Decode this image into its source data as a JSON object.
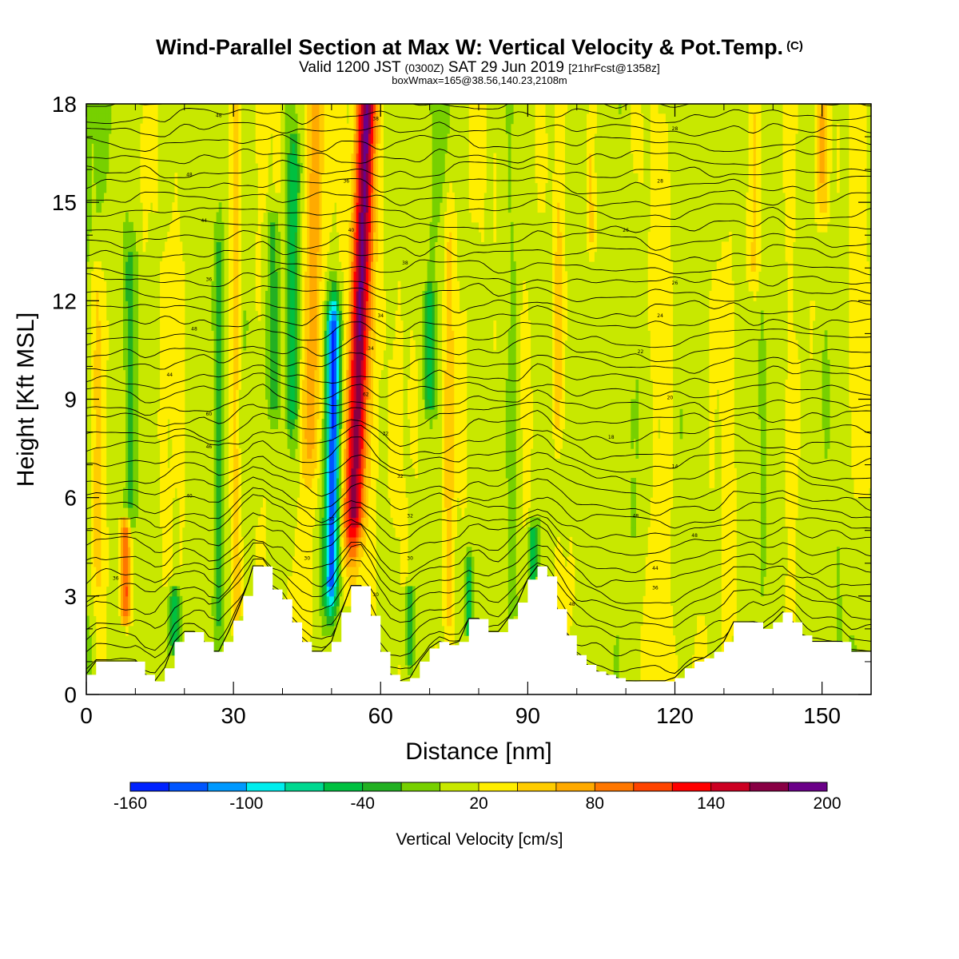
{
  "header": {
    "title": "Wind-Parallel Section at Max W: Vertical Velocity & Pot.Temp.",
    "copyright": "(C)",
    "valid_prefix": "Valid 1200 JST",
    "valid_utc": "(0300Z)",
    "valid_date": "SAT 29 Jun 2019",
    "forecast": "[21hrFcst@1358z]",
    "boxinfo": "boxWmax=165@38.56,140.23,2108m"
  },
  "chart_data": {
    "type": "heatmap",
    "xlabel": "Distance [nm]",
    "ylabel": "Height [Kft MSL]",
    "xlim": [
      0,
      160
    ],
    "ylim": [
      0,
      18
    ],
    "x_ticks": [
      0,
      30,
      60,
      90,
      120,
      150
    ],
    "y_ticks": [
      0,
      3,
      6,
      9,
      12,
      15,
      18
    ],
    "grid": false,
    "colorbar": {
      "title": "Vertical Velocity [cm/s]",
      "labels": [
        "-160",
        "-100",
        "-40",
        "20",
        "80",
        "140",
        "200"
      ],
      "colors": [
        "#0022ff",
        "#0055ff",
        "#0099ff",
        "#00eeee",
        "#00d890",
        "#00c040",
        "#22b022",
        "#77d000",
        "#c8e800",
        "#ffee00",
        "#ffcc00",
        "#ffaa00",
        "#ff7700",
        "#ff4400",
        "#ff0000",
        "#cc0022",
        "#880044",
        "#6a0088"
      ]
    },
    "terrain_kft": [
      [
        0,
        0.6
      ],
      [
        2,
        1.0
      ],
      [
        6,
        1.0
      ],
      [
        10,
        1.0
      ],
      [
        12,
        0.6
      ],
      [
        14,
        0.4
      ],
      [
        16,
        0.8
      ],
      [
        18,
        1.6
      ],
      [
        20,
        1.9
      ],
      [
        22,
        1.9
      ],
      [
        24,
        1.6
      ],
      [
        25,
        1.3
      ],
      [
        27,
        1.3
      ],
      [
        29,
        1.9
      ],
      [
        31,
        2.6
      ],
      [
        33,
        3.4
      ],
      [
        34,
        3.9
      ],
      [
        36,
        3.9
      ],
      [
        38,
        3.2
      ],
      [
        40,
        2.9
      ],
      [
        42,
        2.2
      ],
      [
        44,
        1.6
      ],
      [
        46,
        1.3
      ],
      [
        48,
        1.3
      ],
      [
        50,
        1.6
      ],
      [
        52,
        2.5
      ],
      [
        54,
        3.3
      ],
      [
        56,
        3.3
      ],
      [
        58,
        2.4
      ],
      [
        60,
        1.3
      ],
      [
        62,
        0.6
      ],
      [
        64,
        0.4
      ],
      [
        66,
        0.5
      ],
      [
        68,
        1.0
      ],
      [
        70,
        1.4
      ],
      [
        72,
        1.6
      ],
      [
        74,
        1.5
      ],
      [
        76,
        1.6
      ],
      [
        78,
        2.3
      ],
      [
        80,
        2.3
      ],
      [
        82,
        1.9
      ],
      [
        84,
        1.9
      ],
      [
        86,
        2.3
      ],
      [
        88,
        2.8
      ],
      [
        90,
        3.5
      ],
      [
        92,
        3.9
      ],
      [
        94,
        3.6
      ],
      [
        96,
        2.6
      ],
      [
        98,
        1.8
      ],
      [
        100,
        1.2
      ],
      [
        102,
        0.9
      ],
      [
        104,
        0.7
      ],
      [
        106,
        0.6
      ],
      [
        108,
        0.5
      ],
      [
        110,
        0.4
      ],
      [
        112,
        0.4
      ],
      [
        114,
        0.4
      ],
      [
        116,
        0.4
      ],
      [
        118,
        0.4
      ],
      [
        120,
        0.5
      ],
      [
        122,
        0.8
      ],
      [
        124,
        1.0
      ],
      [
        126,
        1.1
      ],
      [
        128,
        1.3
      ],
      [
        130,
        1.6
      ],
      [
        132,
        2.2
      ],
      [
        134,
        2.2
      ],
      [
        136,
        2.2
      ],
      [
        138,
        2.0
      ],
      [
        140,
        2.2
      ],
      [
        142,
        2.5
      ],
      [
        144,
        2.2
      ],
      [
        146,
        1.8
      ],
      [
        148,
        1.6
      ],
      [
        150,
        1.6
      ],
      [
        152,
        1.6
      ],
      [
        154,
        1.6
      ],
      [
        156,
        1.3
      ],
      [
        158,
        1.3
      ],
      [
        160,
        1.3
      ]
    ],
    "updrafts": [
      {
        "x": 54.5,
        "y0": 6,
        "y1": 18,
        "wx": 2.0,
        "v": 165,
        "tilt": 0.22
      },
      {
        "x": 8,
        "y0": 2.5,
        "y1": 5,
        "wx": 1.0,
        "v": 100,
        "tilt": 0.0
      },
      {
        "x": 46,
        "y0": 8,
        "y1": 18,
        "wx": 1.8,
        "v": 50,
        "tilt": 0.1
      },
      {
        "x": 30.5,
        "y0": 2,
        "y1": 18,
        "wx": 1.0,
        "v": 40,
        "tilt": 0.0
      },
      {
        "x": 96,
        "y0": 9,
        "y1": 18,
        "wx": 1.2,
        "v": 45,
        "tilt": 0.05
      },
      {
        "x": 74,
        "y0": 3,
        "y1": 14,
        "wx": 1.2,
        "v": 35,
        "tilt": 0.0
      },
      {
        "x": 2,
        "y0": 4,
        "y1": 12,
        "wx": 1.5,
        "v": 30,
        "tilt": 0.0
      },
      {
        "x": 136,
        "y0": 13,
        "y1": 18,
        "wx": 1.5,
        "v": 35,
        "tilt": 0.0
      },
      {
        "x": 103,
        "y0": 14,
        "y1": 18,
        "wx": 1.0,
        "v": 40,
        "tilt": 0.0
      },
      {
        "x": 150,
        "y0": 15,
        "y1": 18,
        "wx": 1.0,
        "v": 35,
        "tilt": 0.0
      }
    ],
    "downdrafts": [
      {
        "x": 50,
        "y0": 3.5,
        "y1": 11,
        "wx": 1.4,
        "v": -150,
        "tilt": 0.05
      },
      {
        "x": 42,
        "y0": 9,
        "y1": 16,
        "wx": 1.2,
        "v": -60,
        "tilt": 0.05
      },
      {
        "x": 38,
        "y0": 9,
        "y1": 14,
        "wx": 1.2,
        "v": -50,
        "tilt": 0.0
      },
      {
        "x": 70,
        "y0": 9,
        "y1": 12,
        "wx": 1.2,
        "v": -50,
        "tilt": 0.0
      },
      {
        "x": 9,
        "y0": 6,
        "y1": 13,
        "wx": 1.2,
        "v": -40,
        "tilt": 0.0
      },
      {
        "x": 18,
        "y0": 1.5,
        "y1": 3,
        "wx": 1.2,
        "v": -60,
        "tilt": 0.0
      },
      {
        "x": 27,
        "y0": 3,
        "y1": 13,
        "wx": 1.0,
        "v": -40,
        "tilt": 0.0
      },
      {
        "x": 66,
        "y0": 1,
        "y1": 3,
        "wx": 1.0,
        "v": -50,
        "tilt": 0.0
      },
      {
        "x": 78,
        "y0": 2,
        "y1": 4,
        "wx": 0.8,
        "v": -60,
        "tilt": 0.0
      },
      {
        "x": 91,
        "y0": 3.5,
        "y1": 5,
        "wx": 0.8,
        "v": -60,
        "tilt": 0.0
      }
    ],
    "theta_label_values": [
      "48",
      "48",
      "44",
      "36",
      "48",
      "44",
      "60",
      "46",
      "40",
      "36",
      "38",
      "36",
      "40",
      "38",
      "34",
      "34",
      "62",
      "32",
      "32",
      "32",
      "30",
      "30",
      "30",
      "30",
      "28",
      "28",
      "26",
      "26",
      "24",
      "22",
      "20",
      "18",
      "14"
    ]
  }
}
